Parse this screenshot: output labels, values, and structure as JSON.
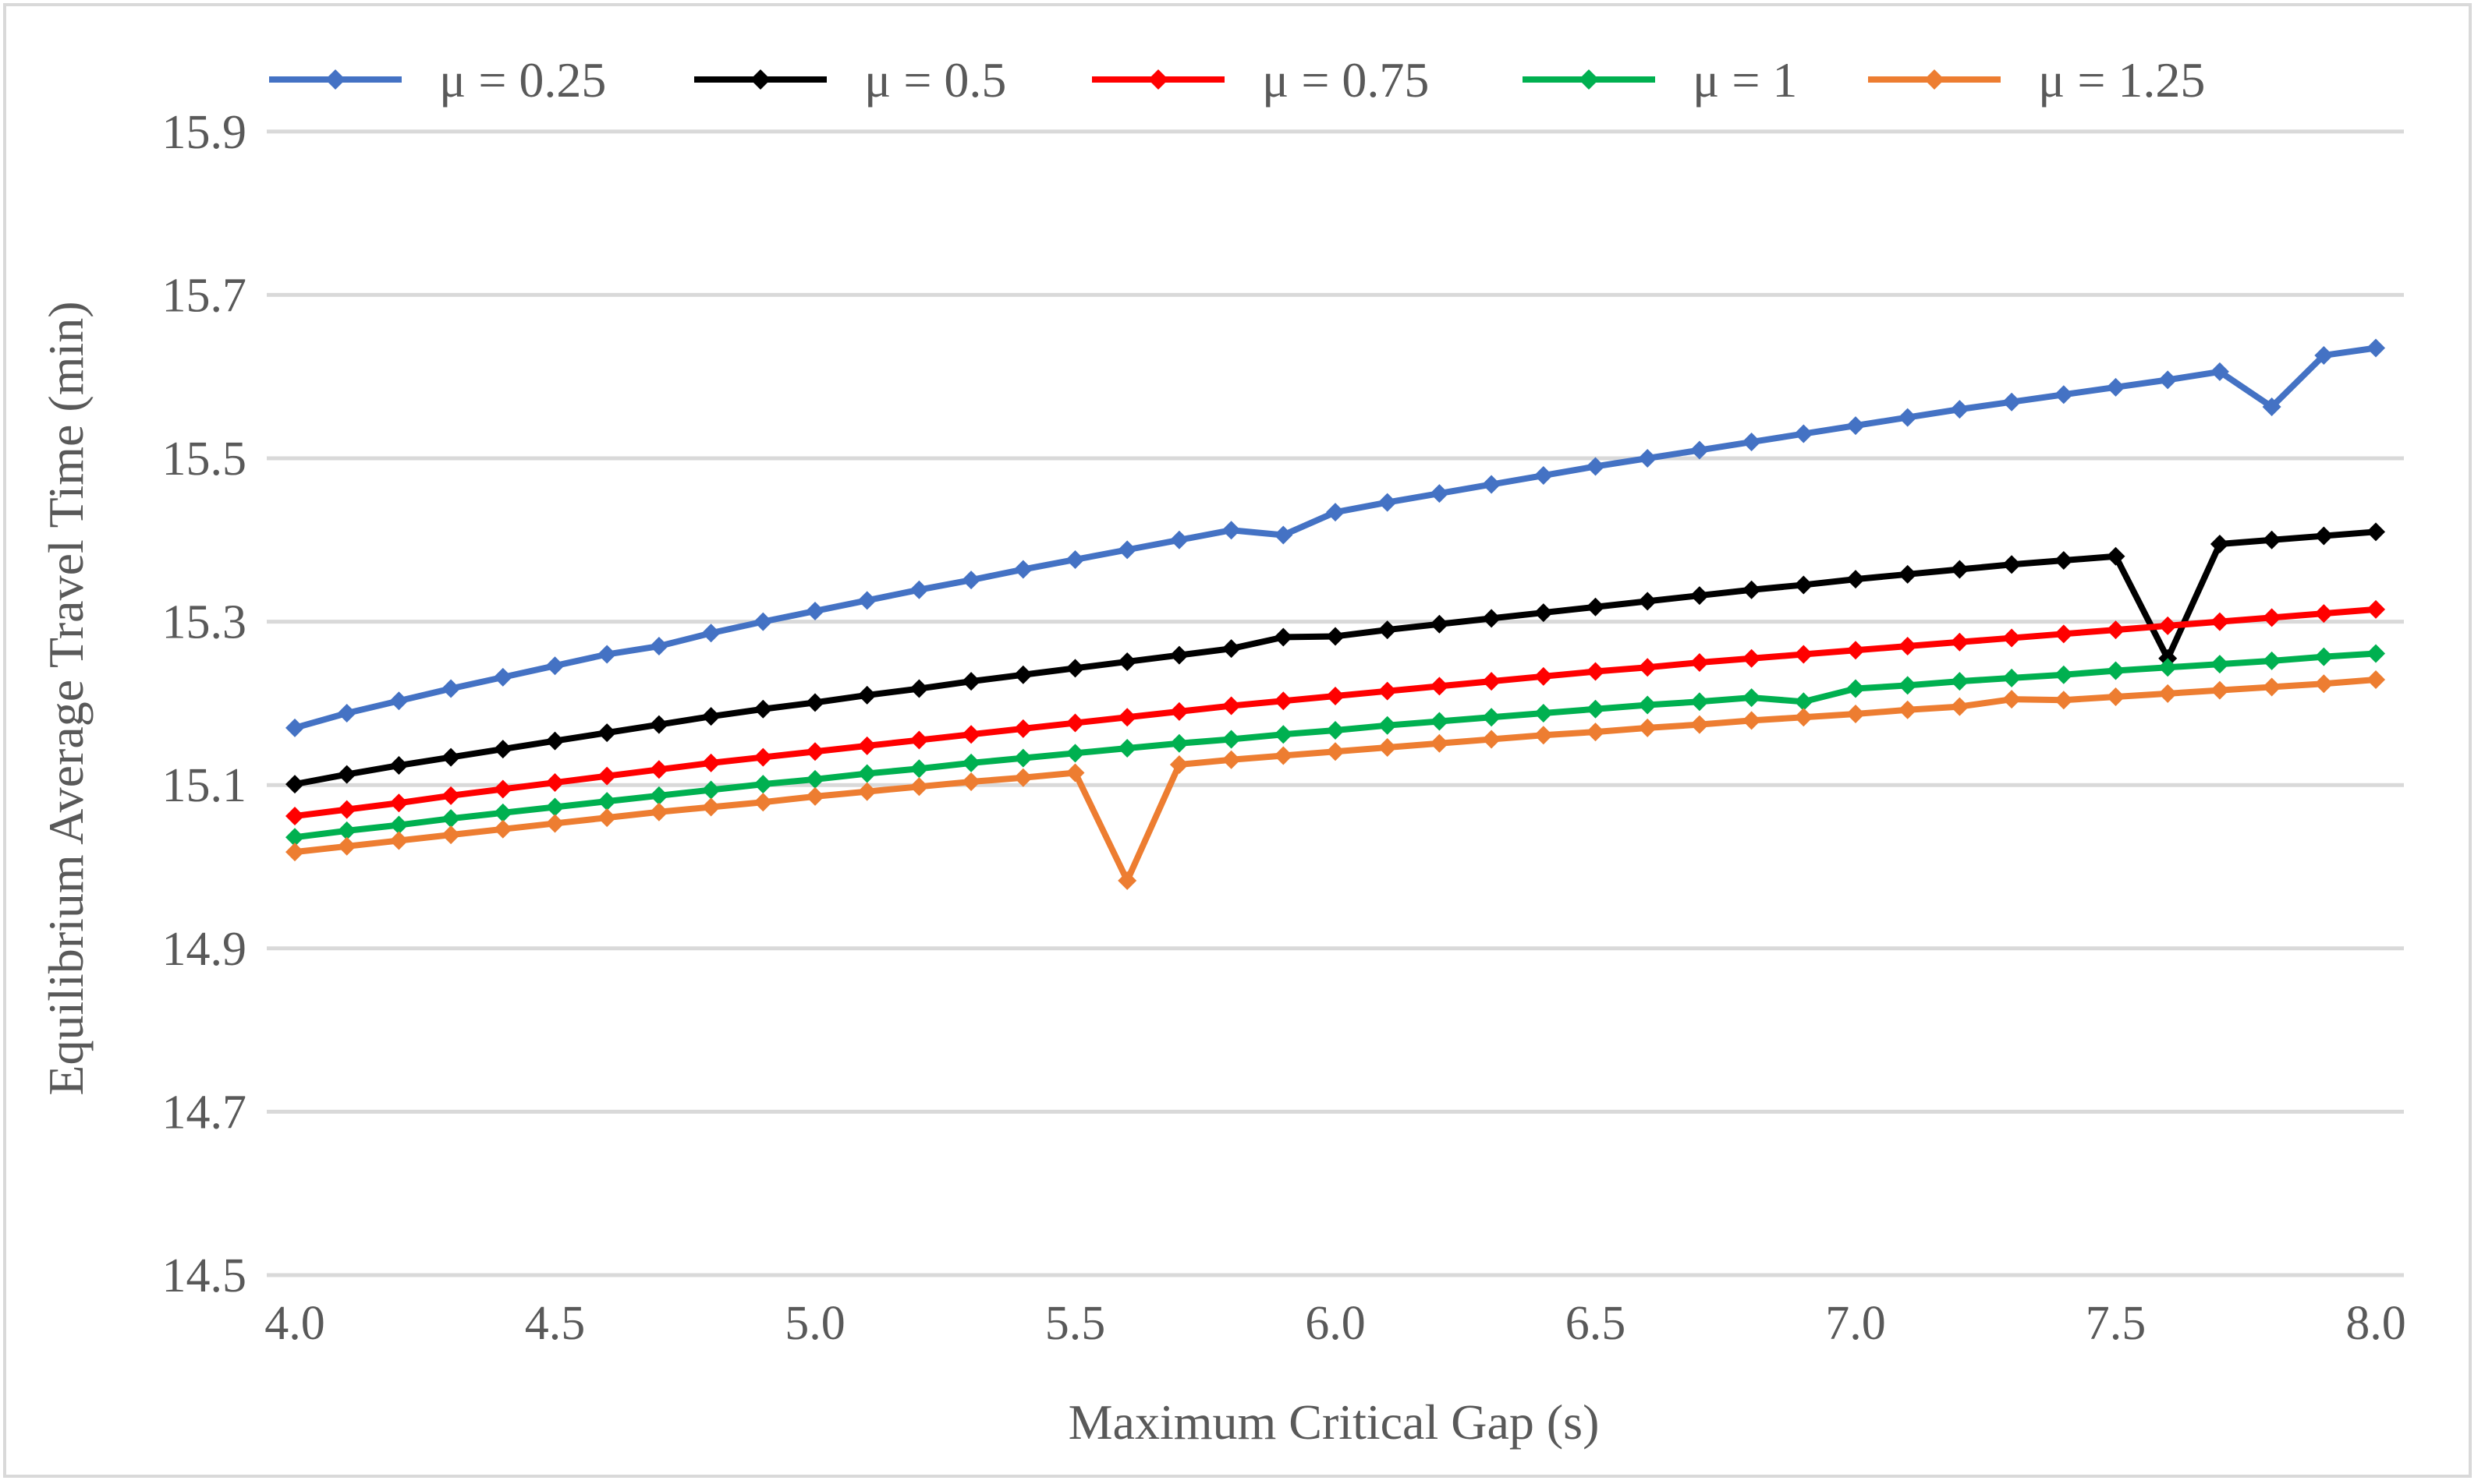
{
  "chart_data": {
    "type": "line",
    "title": "",
    "xlabel": "Maximum Critical Gap (s)",
    "ylabel": "Equilibrium Average Travel Time (min)",
    "xlim": [
      4.0,
      8.0
    ],
    "ylim": [
      14.5,
      16.0
    ],
    "x_ticks": [
      "4.0",
      "4.5",
      "5.0",
      "5.5",
      "6.0",
      "6.5",
      "7.0",
      "7.5",
      "8.0"
    ],
    "y_ticks": [
      "14.5",
      "14.7",
      "14.9",
      "15.1",
      "15.3",
      "15.5",
      "15.7",
      "15.9"
    ],
    "grid": true,
    "legend_position": "top",
    "x": [
      4.0,
      4.1,
      4.2,
      4.3,
      4.4,
      4.5,
      4.6,
      4.7,
      4.8,
      4.9,
      5.0,
      5.1,
      5.2,
      5.3,
      5.4,
      5.5,
      5.6,
      5.7,
      5.8,
      5.9,
      6.0,
      6.1,
      6.2,
      6.3,
      6.4,
      6.5,
      6.6,
      6.7,
      6.8,
      6.9,
      7.0,
      7.1,
      7.2,
      7.3,
      7.4,
      7.5,
      7.6,
      7.7,
      7.8,
      7.9,
      8.0
    ],
    "series": [
      {
        "name": "μ = 0.25",
        "color": "#4472c4",
        "values": [
          15.17,
          15.188,
          15.203,
          15.218,
          15.232,
          15.246,
          15.26,
          15.27,
          15.286,
          15.3,
          15.313,
          15.326,
          15.339,
          15.351,
          15.364,
          15.376,
          15.388,
          15.4,
          15.412,
          15.406,
          15.434,
          15.446,
          15.457,
          15.468,
          15.479,
          15.49,
          15.5,
          15.51,
          15.52,
          15.53,
          15.54,
          15.55,
          15.56,
          15.569,
          15.578,
          15.587,
          15.596,
          15.606,
          15.563,
          15.626,
          15.635
        ]
      },
      {
        "name": "μ = 0.5",
        "color": "#000000",
        "values": [
          15.101,
          15.113,
          15.124,
          15.134,
          15.144,
          15.154,
          15.164,
          15.174,
          15.184,
          15.193,
          15.201,
          15.21,
          15.218,
          15.227,
          15.235,
          15.243,
          15.251,
          15.259,
          15.267,
          15.281,
          15.282,
          15.29,
          15.297,
          15.304,
          15.311,
          15.318,
          15.325,
          15.332,
          15.339,
          15.345,
          15.352,
          15.358,
          15.364,
          15.37,
          15.375,
          15.38,
          15.255,
          15.395,
          15.4,
          15.405,
          15.41
        ]
      },
      {
        "name": "μ = 0.75",
        "color": "#ff0000",
        "values": [
          15.062,
          15.07,
          15.078,
          15.087,
          15.095,
          15.103,
          15.111,
          15.119,
          15.127,
          15.134,
          15.141,
          15.148,
          15.155,
          15.162,
          15.169,
          15.176,
          15.183,
          15.19,
          15.197,
          15.203,
          15.209,
          15.215,
          15.221,
          15.227,
          15.233,
          15.239,
          15.244,
          15.25,
          15.255,
          15.26,
          15.265,
          15.27,
          15.275,
          15.28,
          15.285,
          15.29,
          15.295,
          15.3,
          15.305,
          15.31,
          15.315
        ]
      },
      {
        "name": "μ = 1",
        "color": "#00b050",
        "values": [
          15.036,
          15.044,
          15.051,
          15.059,
          15.066,
          15.073,
          15.08,
          15.087,
          15.094,
          15.101,
          15.107,
          15.114,
          15.12,
          15.127,
          15.133,
          15.139,
          15.145,
          15.151,
          15.156,
          15.162,
          15.167,
          15.173,
          15.178,
          15.183,
          15.188,
          15.193,
          15.198,
          15.202,
          15.207,
          15.202,
          15.218,
          15.222,
          15.227,
          15.231,
          15.235,
          15.24,
          15.244,
          15.248,
          15.252,
          15.257,
          15.261
        ]
      },
      {
        "name": "μ = 1.25",
        "color": "#ed7d31",
        "values": [
          15.018,
          15.025,
          15.032,
          15.039,
          15.046,
          15.053,
          15.06,
          15.067,
          15.073,
          15.079,
          15.086,
          15.092,
          15.098,
          15.104,
          15.109,
          15.115,
          14.983,
          15.125,
          15.131,
          15.136,
          15.141,
          15.146,
          15.151,
          15.156,
          15.161,
          15.165,
          15.17,
          15.174,
          15.179,
          15.183,
          15.187,
          15.192,
          15.196,
          15.205,
          15.204,
          15.208,
          15.212,
          15.216,
          15.22,
          15.224,
          15.229
        ]
      }
    ]
  }
}
